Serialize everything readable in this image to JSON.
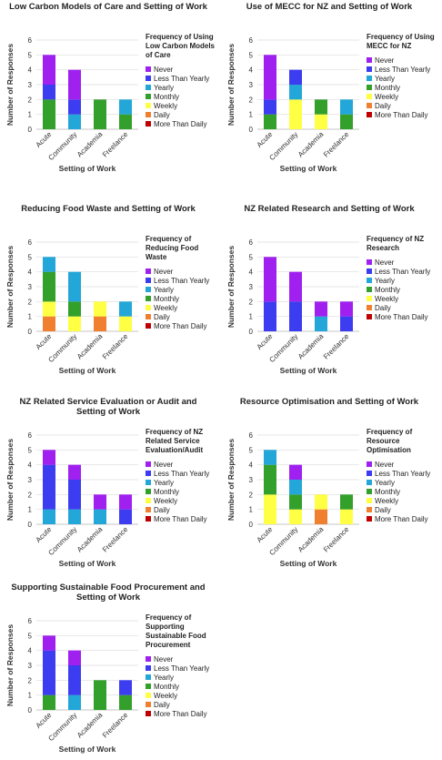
{
  "chart_data": [
    {
      "type": "bar",
      "stacked": true,
      "title": "Low Carbon Models of Care and Setting of Work",
      "legend_title": "Frequency of Using Low Carbon Models of Care",
      "x_label": "Setting of Work",
      "y_label": "Number of Responses",
      "categories": [
        "Acute",
        "Community",
        "Academia",
        "Freelance"
      ],
      "ylim": [
        0,
        6
      ],
      "yticks": [
        0,
        1,
        2,
        3,
        4,
        5,
        6
      ],
      "series": [
        {
          "name": "Never",
          "color": "#a020f0",
          "values": [
            2,
            2,
            0,
            0
          ]
        },
        {
          "name": "Less Than Yearly",
          "color": "#3c3cf0",
          "values": [
            1,
            1,
            0,
            0
          ]
        },
        {
          "name": "Yearly",
          "color": "#22a7d8",
          "values": [
            0,
            1,
            0,
            1
          ]
        },
        {
          "name": "Monthly",
          "color": "#33a02c",
          "values": [
            2,
            0,
            2,
            1
          ]
        },
        {
          "name": "Weekly",
          "color": "#ffff44",
          "values": [
            0,
            0,
            0,
            0
          ]
        },
        {
          "name": "Daily",
          "color": "#f08030",
          "values": [
            0,
            0,
            0,
            0
          ]
        },
        {
          "name": "More Than Daily",
          "color": "#c00000",
          "values": [
            0,
            0,
            0,
            0
          ]
        }
      ]
    },
    {
      "type": "bar",
      "stacked": true,
      "title": "Use of MECC for NZ and Setting of Work",
      "legend_title": "Frequency of Using MECC for NZ",
      "x_label": "Setting of Work",
      "y_label": "Number of Responses",
      "categories": [
        "Acute",
        "Community",
        "Academia",
        "Freelance"
      ],
      "ylim": [
        0,
        6
      ],
      "yticks": [
        0,
        1,
        2,
        3,
        4,
        5,
        6
      ],
      "series": [
        {
          "name": "Never",
          "color": "#a020f0",
          "values": [
            3,
            0,
            0,
            0
          ]
        },
        {
          "name": "Less Than Yearly",
          "color": "#3c3cf0",
          "values": [
            1,
            1,
            0,
            0
          ]
        },
        {
          "name": "Yearly",
          "color": "#22a7d8",
          "values": [
            0,
            1,
            0,
            1
          ]
        },
        {
          "name": "Monthly",
          "color": "#33a02c",
          "values": [
            1,
            0,
            1,
            1
          ]
        },
        {
          "name": "Weekly",
          "color": "#ffff44",
          "values": [
            0,
            2,
            1,
            0
          ]
        },
        {
          "name": "Daily",
          "color": "#f08030",
          "values": [
            0,
            0,
            0,
            0
          ]
        },
        {
          "name": "More Than Daily",
          "color": "#c00000",
          "values": [
            0,
            0,
            0,
            0
          ]
        }
      ]
    },
    {
      "type": "bar",
      "stacked": true,
      "title": "Reducing Food Waste and Setting of Work",
      "legend_title": "Frequency of Reducing Food Waste",
      "x_label": "Setting of Work",
      "y_label": "Number of Responses",
      "categories": [
        "Acute",
        "Community",
        "Academia",
        "Freelance"
      ],
      "ylim": [
        0,
        6
      ],
      "yticks": [
        0,
        1,
        2,
        3,
        4,
        5,
        6
      ],
      "series": [
        {
          "name": "Never",
          "color": "#a020f0",
          "values": [
            0,
            0,
            0,
            0
          ]
        },
        {
          "name": "Less Than Yearly",
          "color": "#3c3cf0",
          "values": [
            0,
            0,
            0,
            0
          ]
        },
        {
          "name": "Yearly",
          "color": "#22a7d8",
          "values": [
            1,
            2,
            0,
            1
          ]
        },
        {
          "name": "Monthly",
          "color": "#33a02c",
          "values": [
            2,
            1,
            0,
            0
          ]
        },
        {
          "name": "Weekly",
          "color": "#ffff44",
          "values": [
            1,
            1,
            1,
            1
          ]
        },
        {
          "name": "Daily",
          "color": "#f08030",
          "values": [
            1,
            0,
            1,
            0
          ]
        },
        {
          "name": "More Than Daily",
          "color": "#c00000",
          "values": [
            0,
            0,
            0,
            0
          ]
        }
      ]
    },
    {
      "type": "bar",
      "stacked": true,
      "title": "NZ Related Research and Setting of Work",
      "legend_title": "Frequency of NZ Research",
      "x_label": "Setting of Work",
      "y_label": "Number of Responses",
      "categories": [
        "Acute",
        "Community",
        "Academia",
        "Freelance"
      ],
      "ylim": [
        0,
        6
      ],
      "yticks": [
        0,
        1,
        2,
        3,
        4,
        5,
        6
      ],
      "series": [
        {
          "name": "Never",
          "color": "#a020f0",
          "values": [
            3,
            2,
            1,
            1
          ]
        },
        {
          "name": "Less Than Yearly",
          "color": "#3c3cf0",
          "values": [
            2,
            2,
            0,
            1
          ]
        },
        {
          "name": "Yearly",
          "color": "#22a7d8",
          "values": [
            0,
            0,
            1,
            0
          ]
        },
        {
          "name": "Monthly",
          "color": "#33a02c",
          "values": [
            0,
            0,
            0,
            0
          ]
        },
        {
          "name": "Weekly",
          "color": "#ffff44",
          "values": [
            0,
            0,
            0,
            0
          ]
        },
        {
          "name": "Daily",
          "color": "#f08030",
          "values": [
            0,
            0,
            0,
            0
          ]
        },
        {
          "name": "More Than Daily",
          "color": "#c00000",
          "values": [
            0,
            0,
            0,
            0
          ]
        }
      ]
    },
    {
      "type": "bar",
      "stacked": true,
      "title": "NZ Related Service Evaluation or Audit and Setting of Work",
      "legend_title": "Frequency of NZ Related Service Evaluation/Audit",
      "x_label": "Setting of Work",
      "y_label": "Number of Responses",
      "categories": [
        "Acute",
        "Community",
        "Academia",
        "Freelance"
      ],
      "ylim": [
        0,
        6
      ],
      "yticks": [
        0,
        1,
        2,
        3,
        4,
        5,
        6
      ],
      "series": [
        {
          "name": "Never",
          "color": "#a020f0",
          "values": [
            1,
            1,
            1,
            1
          ]
        },
        {
          "name": "Less Than Yearly",
          "color": "#3c3cf0",
          "values": [
            3,
            2,
            0,
            1
          ]
        },
        {
          "name": "Yearly",
          "color": "#22a7d8",
          "values": [
            1,
            1,
            1,
            0
          ]
        },
        {
          "name": "Monthly",
          "color": "#33a02c",
          "values": [
            0,
            0,
            0,
            0
          ]
        },
        {
          "name": "Weekly",
          "color": "#ffff44",
          "values": [
            0,
            0,
            0,
            0
          ]
        },
        {
          "name": "Daily",
          "color": "#f08030",
          "values": [
            0,
            0,
            0,
            0
          ]
        },
        {
          "name": "More Than Daily",
          "color": "#c00000",
          "values": [
            0,
            0,
            0,
            0
          ]
        }
      ]
    },
    {
      "type": "bar",
      "stacked": true,
      "title": "Resource Optimisation and Setting of Work",
      "legend_title": "Frequency of Resource Optimisation",
      "x_label": "Setting of Work",
      "y_label": "Number of Responses",
      "categories": [
        "Acute",
        "Community",
        "Academia",
        "Freelance"
      ],
      "ylim": [
        0,
        6
      ],
      "yticks": [
        0,
        1,
        2,
        3,
        4,
        5,
        6
      ],
      "series": [
        {
          "name": "Never",
          "color": "#a020f0",
          "values": [
            0,
            1,
            0,
            0
          ]
        },
        {
          "name": "Less Than Yearly",
          "color": "#3c3cf0",
          "values": [
            0,
            0,
            0,
            0
          ]
        },
        {
          "name": "Yearly",
          "color": "#22a7d8",
          "values": [
            1,
            1,
            0,
            0
          ]
        },
        {
          "name": "Monthly",
          "color": "#33a02c",
          "values": [
            2,
            1,
            0,
            1
          ]
        },
        {
          "name": "Weekly",
          "color": "#ffff44",
          "values": [
            2,
            1,
            1,
            1
          ]
        },
        {
          "name": "Daily",
          "color": "#f08030",
          "values": [
            0,
            0,
            1,
            0
          ]
        },
        {
          "name": "More Than Daily",
          "color": "#c00000",
          "values": [
            0,
            0,
            0,
            0
          ]
        }
      ]
    },
    {
      "type": "bar",
      "stacked": true,
      "title": "Supporting Sustainable Food Procurement and Setting of Work",
      "legend_title": "Frequency of Supporting Sustainable Food Procurement",
      "x_label": "Setting of Work",
      "y_label": "Number of Responses",
      "categories": [
        "Acute",
        "Community",
        "Academia",
        "Freelance"
      ],
      "ylim": [
        0,
        6
      ],
      "yticks": [
        0,
        1,
        2,
        3,
        4,
        5,
        6
      ],
      "series": [
        {
          "name": "Never",
          "color": "#a020f0",
          "values": [
            1,
            1,
            0,
            0
          ]
        },
        {
          "name": "Less Than Yearly",
          "color": "#3c3cf0",
          "values": [
            3,
            2,
            0,
            1
          ]
        },
        {
          "name": "Yearly",
          "color": "#22a7d8",
          "values": [
            0,
            1,
            0,
            0
          ]
        },
        {
          "name": "Monthly",
          "color": "#33a02c",
          "values": [
            1,
            0,
            2,
            1
          ]
        },
        {
          "name": "Weekly",
          "color": "#ffff44",
          "values": [
            0,
            0,
            0,
            0
          ]
        },
        {
          "name": "Daily",
          "color": "#f08030",
          "values": [
            0,
            0,
            0,
            0
          ]
        },
        {
          "name": "More Than Daily",
          "color": "#c00000",
          "values": [
            0,
            0,
            0,
            0
          ]
        }
      ]
    }
  ]
}
